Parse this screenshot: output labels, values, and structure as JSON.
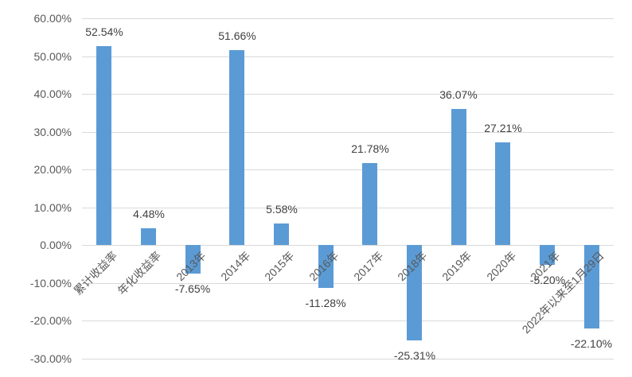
{
  "chart_data": {
    "type": "bar",
    "title": "",
    "xlabel": "",
    "ylabel": "",
    "categories": [
      "累计收益率",
      "年化收益率",
      "2013年",
      "2014年",
      "2015年",
      "2016年",
      "2017年",
      "2018年",
      "2019年",
      "2020年",
      "2021年",
      "2022年以来至1月29日"
    ],
    "values": [
      52.54,
      4.48,
      -7.65,
      51.66,
      5.58,
      -11.28,
      21.78,
      -25.31,
      36.07,
      27.21,
      -5.2,
      -22.1
    ],
    "data_labels": [
      "52.54%",
      "4.48%",
      "-7.65%",
      "51.66%",
      "5.58%",
      "-11.28%",
      "21.78%",
      "-25.31%",
      "36.07%",
      "27.21%",
      "-5.20%",
      "-22.10%"
    ],
    "y_tick_labels": [
      "60.00%",
      "50.00%",
      "40.00%",
      "30.00%",
      "20.00%",
      "10.00%",
      "0.00%",
      "-10.00%",
      "-20.00%",
      "-30.00%"
    ],
    "y_tick_values": [
      60,
      50,
      40,
      30,
      20,
      10,
      0,
      -10,
      -20,
      -30
    ],
    "ylim": [
      -30,
      60
    ],
    "grid": true,
    "legend_position": "none",
    "bar_color": "#5B9BD5"
  },
  "colors": {
    "bar": "#5B9BD5",
    "gridline": "#D9D9D9",
    "axis_tick_label": "#595959",
    "category_label": "#595959",
    "data_label": "#404040",
    "background": "#FFFFFF"
  }
}
